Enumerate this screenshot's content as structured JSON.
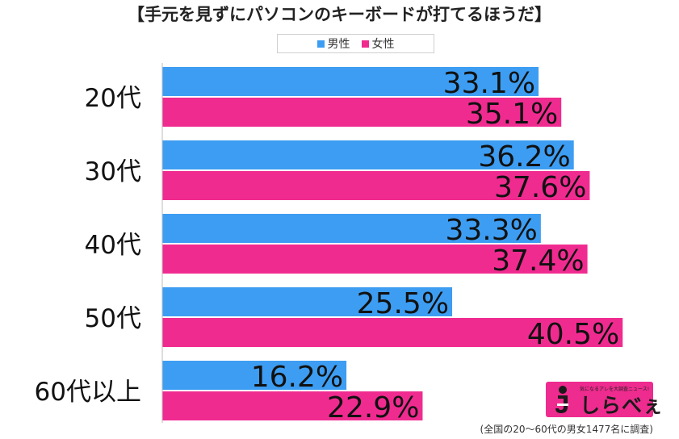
{
  "chart_data": {
    "type": "bar",
    "orientation": "horizontal",
    "title": "【手元を見ずにパソコンのキーボードが打てるほうだ】",
    "categories": [
      "20代",
      "30代",
      "40代",
      "50代",
      "60代以上"
    ],
    "series": [
      {
        "name": "男性",
        "color": "#3d9df2",
        "values": [
          33.1,
          36.2,
          33.3,
          25.5,
          16.2
        ],
        "labels": [
          "33.1%",
          "36.2%",
          "33.3%",
          "25.5%",
          "16.2%"
        ]
      },
      {
        "name": "女性",
        "color": "#f02b90",
        "values": [
          35.1,
          37.6,
          37.4,
          40.5,
          22.9
        ],
        "labels": [
          "35.1%",
          "37.6%",
          "37.4%",
          "40.5%",
          "22.9%"
        ]
      }
    ],
    "xlim": [
      0,
      60
    ],
    "grid": false,
    "legend_position": "top-center"
  },
  "footnote": "(全国の20～60代の男女1477名に調査)",
  "logo": {
    "name": "しらべぇ",
    "tagline": "気になるアレを大調査ニュース!",
    "mark": "i"
  }
}
